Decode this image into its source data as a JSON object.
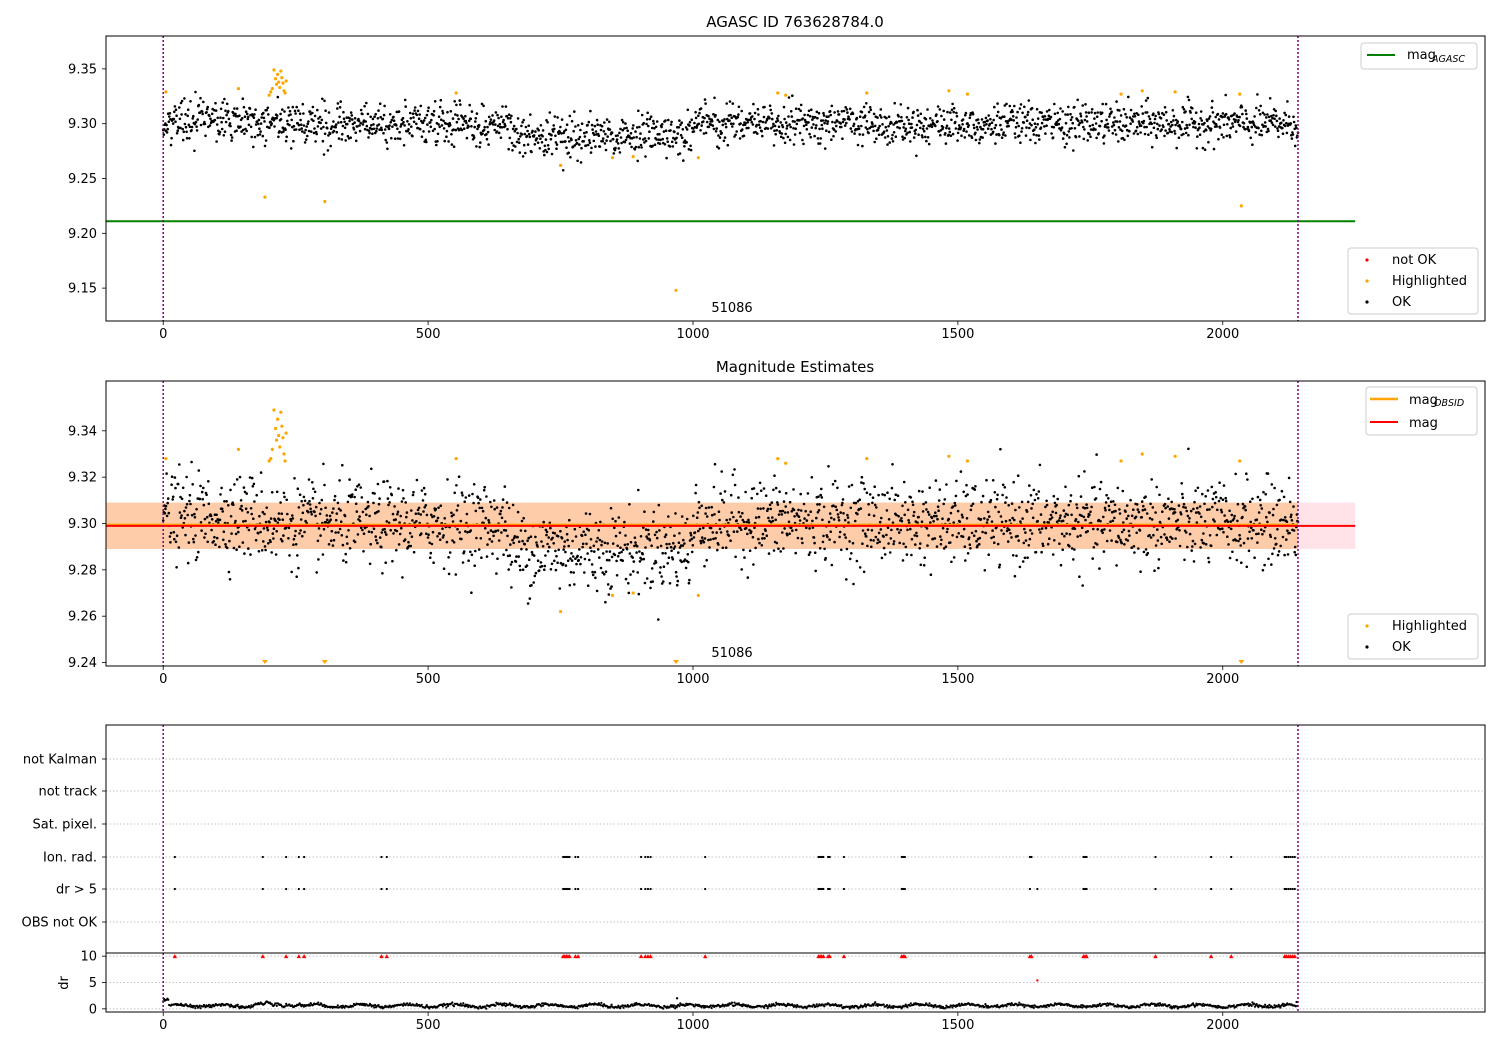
{
  "figure": {
    "annotation": "51086"
  },
  "chart_data": [
    {
      "type": "scatter",
      "title": "AGASC ID 763628784.0",
      "xlim": [
        -108,
        2495
      ],
      "ylim": [
        9.12,
        9.38
      ],
      "xticks": [
        0,
        500,
        1000,
        1500,
        2000
      ],
      "yticks": [
        9.15,
        9.2,
        9.25,
        9.3,
        9.35
      ],
      "ytick_labels": [
        "9.15",
        "9.20",
        "9.25",
        "9.30",
        "9.35"
      ],
      "vlines": [
        0,
        2142
      ],
      "vline_color": "#800080",
      "annotation": {
        "x": 1000,
        "y": 9.128,
        "text": "51086"
      },
      "lines": [
        {
          "name": "mag_AGASC",
          "label": "mag",
          "subscript": "AGASC",
          "y": 9.211,
          "x_range": [
            -108,
            2250
          ],
          "color": "#008000"
        }
      ],
      "scatter_legend": [
        {
          "label": "not OK",
          "color": "#ff0000"
        },
        {
          "label": "Highlighted",
          "color": "#ffa500"
        },
        {
          "label": "OK",
          "color": "#000000"
        }
      ],
      "line_legend_position": "upper right",
      "scatter_legend_position": "lower right",
      "ok_series": {
        "name": "OK",
        "color": "#000000",
        "x_range": [
          0,
          2142
        ],
        "baseline": 9.3,
        "noise": 0.009,
        "segments": [
          {
            "x": [
              0,
              190
            ],
            "y": 9.303
          },
          {
            "x": [
              190,
              240
            ],
            "y": 9.3
          },
          {
            "x": [
              240,
              650
            ],
            "y": 9.3
          },
          {
            "x": [
              650,
              1000
            ],
            "y": 9.289
          },
          {
            "x": [
              1000,
              1400
            ],
            "y": 9.301
          },
          {
            "x": [
              1400,
              2142
            ],
            "y": 9.3
          }
        ]
      },
      "highlighted": [
        {
          "x": 5,
          "y": 9.329
        },
        {
          "x": 142,
          "y": 9.332
        },
        {
          "x": 192,
          "y": 9.233
        },
        {
          "x": 200,
          "y": 9.326
        },
        {
          "x": 203,
          "y": 9.329
        },
        {
          "x": 206,
          "y": 9.332
        },
        {
          "x": 209,
          "y": 9.349
        },
        {
          "x": 212,
          "y": 9.341
        },
        {
          "x": 214,
          "y": 9.336
        },
        {
          "x": 216,
          "y": 9.345
        },
        {
          "x": 218,
          "y": 9.338
        },
        {
          "x": 220,
          "y": 9.333
        },
        {
          "x": 222,
          "y": 9.348
        },
        {
          "x": 224,
          "y": 9.342
        },
        {
          "x": 226,
          "y": 9.337
        },
        {
          "x": 228,
          "y": 9.33
        },
        {
          "x": 230,
          "y": 9.328
        },
        {
          "x": 232,
          "y": 9.339
        },
        {
          "x": 305,
          "y": 9.229
        },
        {
          "x": 553,
          "y": 9.328
        },
        {
          "x": 750,
          "y": 9.262
        },
        {
          "x": 848,
          "y": 9.269
        },
        {
          "x": 887,
          "y": 9.27
        },
        {
          "x": 968,
          "y": 9.148
        },
        {
          "x": 1010,
          "y": 9.269
        },
        {
          "x": 1160,
          "y": 9.328
        },
        {
          "x": 1175,
          "y": 9.326
        },
        {
          "x": 1328,
          "y": 9.328
        },
        {
          "x": 1483,
          "y": 9.33
        },
        {
          "x": 1518,
          "y": 9.327
        },
        {
          "x": 1808,
          "y": 9.327
        },
        {
          "x": 1848,
          "y": 9.33
        },
        {
          "x": 1910,
          "y": 9.329
        },
        {
          "x": 2032,
          "y": 9.327
        },
        {
          "x": 2035,
          "y": 9.225
        }
      ]
    },
    {
      "type": "scatter",
      "title": "Magnitude Estimates",
      "xlim": [
        -108,
        2495
      ],
      "ylim": [
        9.2385,
        9.3615
      ],
      "xticks": [
        0,
        500,
        1000,
        1500,
        2000
      ],
      "yticks": [
        9.24,
        9.26,
        9.28,
        9.3,
        9.32,
        9.34
      ],
      "ytick_labels": [
        "9.24",
        "9.26",
        "9.28",
        "9.30",
        "9.32",
        "9.34"
      ],
      "vlines": [
        0,
        2142
      ],
      "vline_color": "#800080",
      "annotation": {
        "x": 1000,
        "y": 9.242,
        "text": "51086"
      },
      "lines": [
        {
          "name": "mag_OBSID",
          "label": "mag",
          "subscript": "OBSID",
          "y": 9.2995,
          "x_range": [
            -108,
            2142
          ],
          "color": "#ffa500",
          "band": [
            9.289,
            9.309
          ],
          "band_color": "#ffa500",
          "band_range": [
            -108,
            2142
          ]
        },
        {
          "name": "mag",
          "label": "mag",
          "y": 9.299,
          "x_range": [
            -108,
            2250
          ],
          "color": "#ff0000",
          "band": [
            9.289,
            9.309
          ],
          "band_color": "#ffc0cb",
          "band_range": [
            -108,
            2250
          ]
        }
      ],
      "scatter_legend": [
        {
          "label": "Highlighted",
          "color": "#ffa500"
        },
        {
          "label": "OK",
          "color": "#000000"
        }
      ],
      "line_legend_position": "upper right",
      "scatter_legend_position": "lower right",
      "ok_series": {
        "name": "OK",
        "color": "#000000",
        "x_range": [
          0,
          2142
        ],
        "baseline": 9.3,
        "noise": 0.009,
        "segments": [
          {
            "x": [
              0,
              190
            ],
            "y": 9.303
          },
          {
            "x": [
              190,
              240
            ],
            "y": 9.3
          },
          {
            "x": [
              240,
              650
            ],
            "y": 9.3
          },
          {
            "x": [
              650,
              1000
            ],
            "y": 9.289
          },
          {
            "x": [
              1000,
              1400
            ],
            "y": 9.301
          },
          {
            "x": [
              1400,
              2142
            ],
            "y": 9.3
          }
        ]
      },
      "highlighted": [
        {
          "x": 5,
          "y": 9.328
        },
        {
          "x": 142,
          "y": 9.332
        },
        {
          "x": 200,
          "y": 9.327
        },
        {
          "x": 203,
          "y": 9.328
        },
        {
          "x": 206,
          "y": 9.332
        },
        {
          "x": 209,
          "y": 9.349
        },
        {
          "x": 212,
          "y": 9.341
        },
        {
          "x": 214,
          "y": 9.336
        },
        {
          "x": 216,
          "y": 9.345
        },
        {
          "x": 218,
          "y": 9.338
        },
        {
          "x": 220,
          "y": 9.333
        },
        {
          "x": 222,
          "y": 9.348
        },
        {
          "x": 224,
          "y": 9.342
        },
        {
          "x": 226,
          "y": 9.337
        },
        {
          "x": 228,
          "y": 9.33
        },
        {
          "x": 230,
          "y": 9.327
        },
        {
          "x": 232,
          "y": 9.339
        },
        {
          "x": 553,
          "y": 9.328
        },
        {
          "x": 750,
          "y": 9.262
        },
        {
          "x": 848,
          "y": 9.269
        },
        {
          "x": 887,
          "y": 9.27
        },
        {
          "x": 1010,
          "y": 9.269
        },
        {
          "x": 1160,
          "y": 9.328
        },
        {
          "x": 1175,
          "y": 9.326
        },
        {
          "x": 1328,
          "y": 9.328
        },
        {
          "x": 1483,
          "y": 9.329
        },
        {
          "x": 1518,
          "y": 9.327
        },
        {
          "x": 1808,
          "y": 9.327
        },
        {
          "x": 1848,
          "y": 9.33
        },
        {
          "x": 1910,
          "y": 9.329
        },
        {
          "x": 2032,
          "y": 9.327
        }
      ],
      "clipped_low": [
        192,
        305,
        968,
        2035
      ]
    },
    {
      "type": "scatter",
      "title": "",
      "xlim": [
        -108,
        2495
      ],
      "xticks": [
        0,
        500,
        1000,
        1500,
        2000
      ],
      "vlines": [
        0,
        2142
      ],
      "vline_color": "#800080",
      "flag_rows": [
        "not Kalman",
        "not track",
        "Sat. pixel.",
        "Ion. rad.",
        "dr > 5",
        "OBS not OK"
      ],
      "flag_events": {
        "Ion. rad.": [
          22,
          188,
          232,
          256,
          266,
          412,
          422,
          755,
          758,
          761,
          764,
          767,
          778,
          783,
          902,
          910,
          915,
          920,
          1023,
          1237,
          1240,
          1243,
          1246,
          1255,
          1258,
          1285,
          1394,
          1397,
          1400,
          1636,
          1639,
          1737,
          1740,
          1743,
          1873,
          1978,
          2016,
          2117,
          2120,
          2124,
          2128,
          2132,
          2136
        ],
        "dr > 5": [
          22,
          188,
          232,
          256,
          266,
          412,
          422,
          755,
          758,
          761,
          764,
          767,
          778,
          783,
          902,
          910,
          915,
          920,
          1023,
          1237,
          1240,
          1243,
          1246,
          1255,
          1258,
          1285,
          1394,
          1397,
          1400,
          1636,
          1650,
          1737,
          1740,
          1743,
          1873,
          1978,
          2016,
          2117,
          2120,
          2124,
          2128,
          2132,
          2136
        ]
      },
      "dr": {
        "ylabel": "dr",
        "ylim": [
          -0.6,
          10.6
        ],
        "yticks": [
          0,
          5,
          10
        ],
        "ytick_labels": [
          "0",
          "5",
          "10"
        ],
        "line_color": "#000000",
        "x_range": [
          0,
          2142
        ],
        "baseline": 0.6,
        "clipped_high": [
          22,
          188,
          232,
          256,
          266,
          412,
          422,
          755,
          758,
          761,
          764,
          767,
          778,
          783,
          902,
          910,
          915,
          920,
          1023,
          1237,
          1240,
          1243,
          1246,
          1255,
          1258,
          1285,
          1394,
          1397,
          1400,
          1636,
          1639,
          1737,
          1740,
          1743,
          1873,
          1978,
          2016,
          2117,
          2120,
          2124,
          2128,
          2132,
          2136
        ],
        "outliers": [
          {
            "x": 1650,
            "y": 5.4
          },
          {
            "x": 970,
            "y": 2.0
          }
        ],
        "clip_color": "#ff0000"
      }
    }
  ]
}
